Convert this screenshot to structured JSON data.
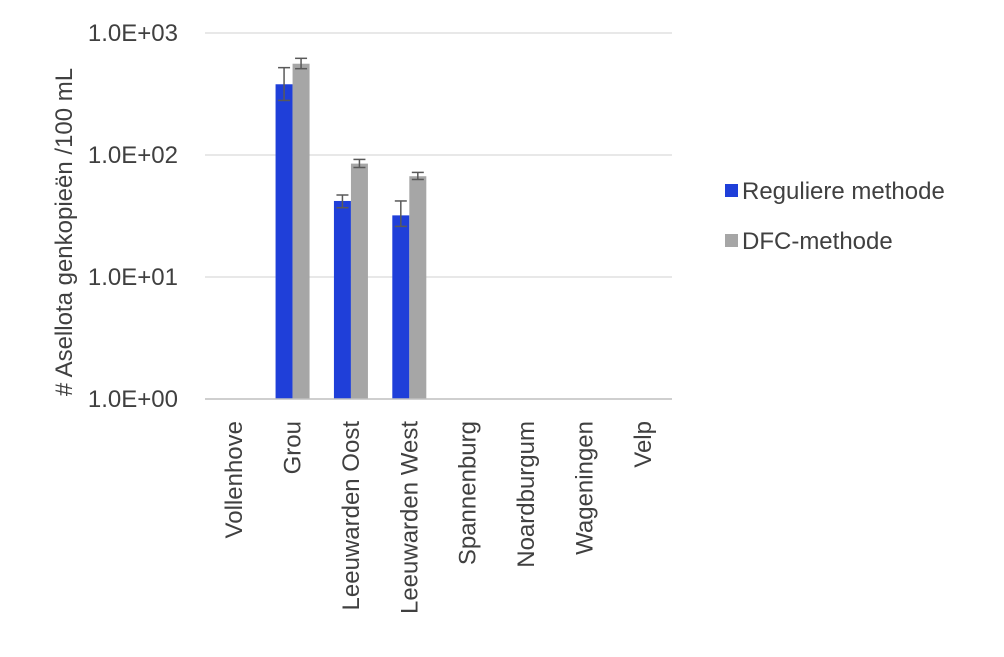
{
  "chart_data": {
    "type": "bar",
    "ylabel": "# Asellota  genkopieën /100 mL",
    "yscale": "log",
    "ylim": [
      1,
      1000
    ],
    "ytick_values": [
      1,
      10,
      100,
      1000
    ],
    "ytick_labels": [
      "1.0E+00",
      "1.0E+01",
      "1.0E+02",
      "1.0E+03"
    ],
    "grid": true,
    "legend_position": "right",
    "categories": [
      "Vollenhove",
      "Grou",
      "Leeuwarden Oost",
      "Leeuwarden West",
      "Spannenburg",
      "Noardburgum",
      "Wageningen",
      "Velp"
    ],
    "series": [
      {
        "name": "Reguliere methode",
        "color": "#1f3fd9",
        "values": [
          null,
          380,
          42,
          32,
          null,
          null,
          null,
          null
        ],
        "error_low": [
          null,
          280,
          37,
          26,
          null,
          null,
          null,
          null
        ],
        "error_high": [
          null,
          520,
          47,
          42,
          null,
          null,
          null,
          null
        ]
      },
      {
        "name": "DFC-methode",
        "color": "#a6a6a6",
        "values": [
          null,
          560,
          85,
          67,
          null,
          null,
          null,
          null
        ],
        "error_low": [
          null,
          510,
          79,
          63,
          null,
          null,
          null,
          null
        ],
        "error_high": [
          null,
          620,
          92,
          72,
          null,
          null,
          null,
          null
        ]
      }
    ]
  }
}
